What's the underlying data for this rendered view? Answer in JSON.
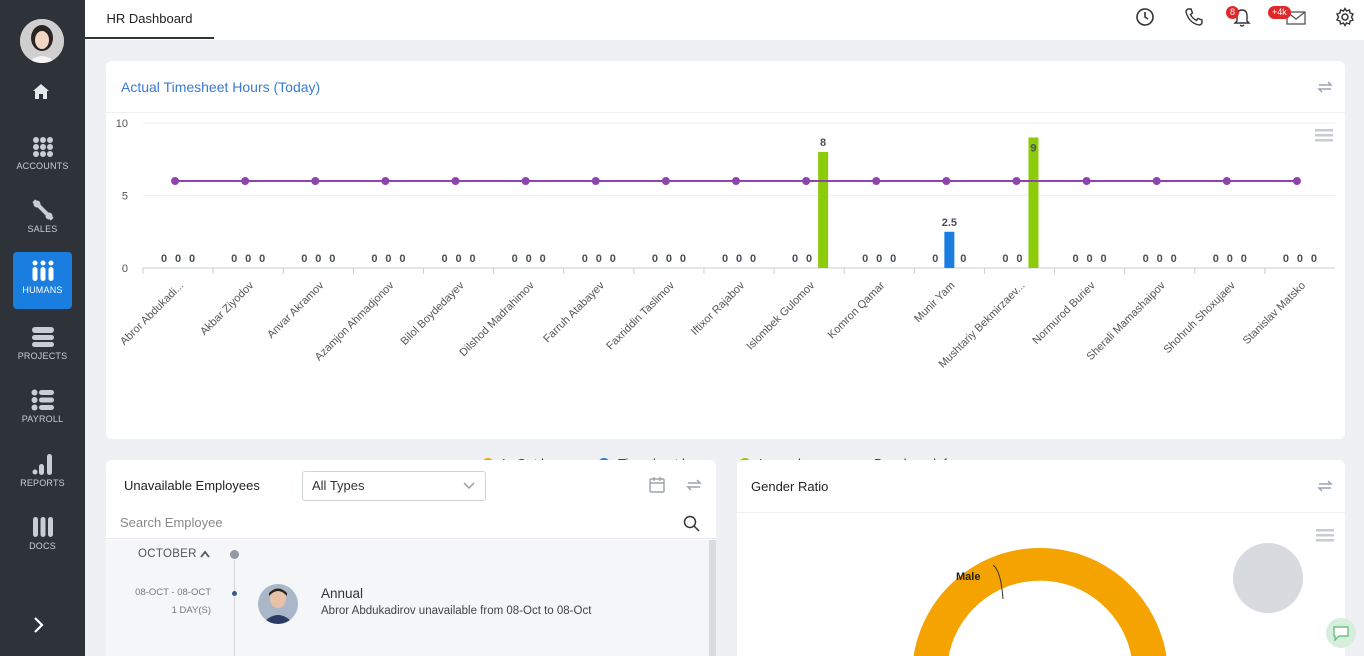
{
  "sidebar": {
    "items": [
      {
        "label": "ACCOUNTS",
        "icon": "grid-icon"
      },
      {
        "label": "SALES",
        "icon": "percent-icon"
      },
      {
        "label": "HUMANS",
        "icon": "people-icon"
      },
      {
        "label": "PROJECTS",
        "icon": "projects-icon"
      },
      {
        "label": "PAYROLL",
        "icon": "list-icon"
      },
      {
        "label": "REPORTS",
        "icon": "bar-chart-icon"
      },
      {
        "label": "DOCS",
        "icon": "docs-icon"
      }
    ],
    "active": "HUMANS",
    "active_color": "#1a7ee0"
  },
  "topbar": {
    "tab_label": "HR Dashboard",
    "notifications_badge": "8",
    "messages_badge": "+4k"
  },
  "timesheet": {
    "title": "Actual Timesheet Hours (Today)",
    "legend": [
      {
        "label": "In Out hours",
        "color": "#f0a30a"
      },
      {
        "label": "Timesheet hou...",
        "color": "#1a7ee0"
      },
      {
        "label": "Leave hours",
        "color": "#8ccc0a"
      },
      {
        "label": "Benchmark for...",
        "color": "#8e44ad"
      }
    ]
  },
  "chart_data": {
    "type": "bar",
    "categories": [
      "Abror Abdukadi...",
      "Akbar Ziyodov",
      "Anvar Akramov",
      "Azamjon Ahmadjonov",
      "Bilol Boydedayev",
      "Dilshod Madrahimov",
      "Farruh Atabayev",
      "Faxriddin Taslimov",
      "Iftixor Rajabov",
      "Islombek Gulomov",
      "Komron Qamar",
      "Munir Yam",
      "Mushtariy Bekmirzaev...",
      "Normurod Buriev",
      "Sherali Mamashaipov",
      "Shohruh Shoxujaev",
      "Stanislav Matsko"
    ],
    "series": [
      {
        "name": "In Out hours",
        "values": [
          0,
          0,
          0,
          0,
          0,
          0,
          0,
          0,
          0,
          0,
          0,
          0,
          0,
          0,
          0,
          0,
          0
        ]
      },
      {
        "name": "Timesheet hou...",
        "values": [
          0,
          0,
          0,
          0,
          0,
          0,
          0,
          0,
          0,
          0,
          0,
          2.5,
          0,
          0,
          0,
          0,
          0
        ]
      },
      {
        "name": "Leave hours",
        "values": [
          0,
          0,
          0,
          0,
          0,
          0,
          0,
          0,
          0,
          8,
          0,
          0,
          9,
          0,
          0,
          0,
          0
        ]
      },
      {
        "name": "Benchmark for...",
        "type": "line",
        "values": [
          6,
          6,
          6,
          6,
          6,
          6,
          6,
          6,
          6,
          6,
          6,
          6,
          6,
          6,
          6,
          6,
          6
        ]
      }
    ],
    "yticks": [
      0,
      5,
      10
    ],
    "ylim": [
      0,
      10
    ]
  },
  "unavailable": {
    "title": "Unavailable Employees",
    "filter_value": "All Types",
    "search_placeholder": "Search Employee",
    "month": "OCTOBER",
    "entries": [
      {
        "dates": "08-OCT - 08-OCT",
        "duration": "1 DAY(S)",
        "type": "Annual",
        "text": "Abror Abdukadirov unavailable from 08-Oct to 08-Oct"
      }
    ]
  },
  "gender": {
    "title": "Gender Ratio",
    "label_male": "Male",
    "male_color": "#f5a300"
  }
}
